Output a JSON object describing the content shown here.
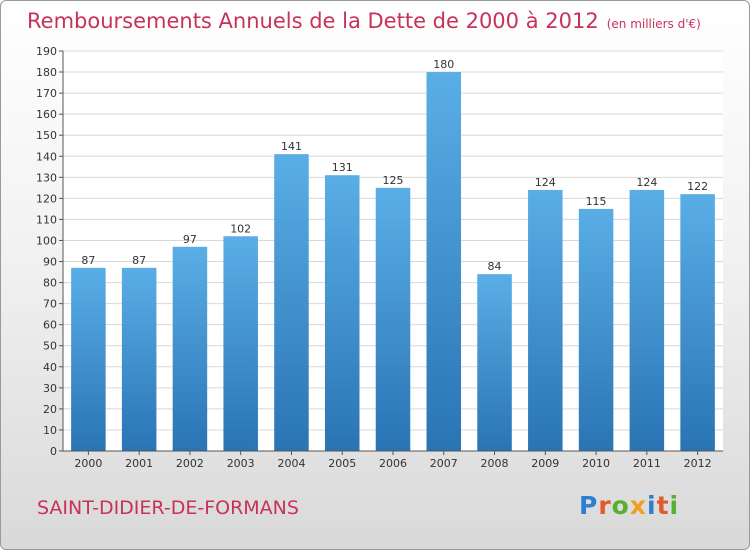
{
  "header": {
    "title": "Remboursements Annuels de la Dette de 2000 à 2012",
    "units": "(en milliers d'€)"
  },
  "footer": {
    "commune": "SAINT-DIDIER-DE-FORMANS",
    "logo": "Proxiti"
  },
  "colors": {
    "title": "#c8325a",
    "bar_top": "#5aaee6",
    "bar_bottom": "#2a74b4"
  },
  "chart_data": {
    "type": "bar",
    "categories": [
      "2000",
      "2001",
      "2002",
      "2003",
      "2004",
      "2005",
      "2006",
      "2007",
      "2008",
      "2009",
      "2010",
      "2011",
      "2012"
    ],
    "values": [
      87,
      87,
      97,
      102,
      141,
      131,
      125,
      180,
      84,
      124,
      115,
      124,
      122
    ],
    "data_labels": [
      "87",
      "87",
      "97",
      "102",
      "141",
      "131",
      "125",
      "180",
      "84",
      "124",
      "115",
      "124",
      "122"
    ],
    "title": "Remboursements Annuels de la Dette de 2000 à 2012",
    "xlabel": "",
    "ylabel": "",
    "ylim": [
      0,
      190
    ],
    "yticks": [
      0,
      10,
      20,
      30,
      40,
      50,
      60,
      70,
      80,
      90,
      100,
      110,
      120,
      130,
      140,
      150,
      160,
      170,
      180,
      190
    ],
    "grid": true
  }
}
